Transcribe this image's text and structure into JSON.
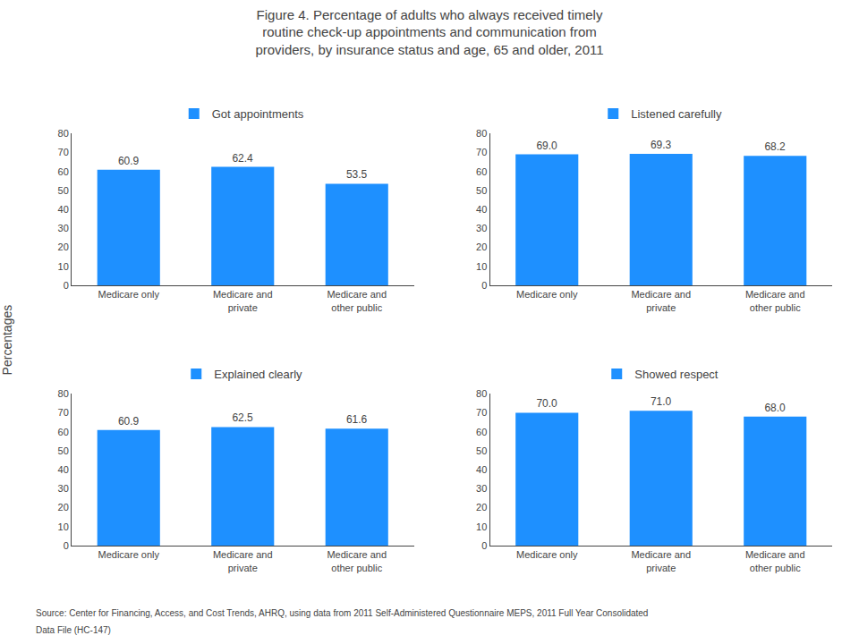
{
  "title": "Figure 4. Percentage of adults who always received timely\nroutine check-up appointments and communication from\nproviders, by insurance status and age, 65 and older, 2011",
  "ylabel": "Percentages",
  "annotations": [
    "Source: Center for Financing, Access, and Cost Trends, AHRQ, using data from 2011 Self-Administered Questionnaire MEPS, 2011 Full Year Consolidated",
    "Data File (HC-147)"
  ],
  "chart_data": [
    {
      "type": "bar",
      "title": "Got appointments",
      "categories": [
        "Medicare only",
        "Medicare and\nprivate",
        "Medicare and\nother public"
      ],
      "values": [
        60.9,
        62.4,
        53.5
      ],
      "value_labels": [
        "60.9",
        "62.4",
        "53.5"
      ],
      "color": "#1E90FF",
      "ylim": [
        0,
        80
      ],
      "yticks": [
        0,
        10,
        20,
        30,
        40,
        50,
        60,
        70,
        80
      ],
      "grid": false,
      "data_labels": true
    },
    {
      "type": "bar",
      "title": "Listened carefully",
      "categories": [
        "Medicare only",
        "Medicare and\nprivate",
        "Medicare and\nother public"
      ],
      "values": [
        69.0,
        69.3,
        68.2
      ],
      "value_labels": [
        "69.0",
        "69.3",
        "68.2"
      ],
      "color": "#1E90FF",
      "ylim": [
        0,
        80
      ],
      "yticks": [
        0,
        10,
        20,
        30,
        40,
        50,
        60,
        70,
        80
      ],
      "grid": false,
      "data_labels": true
    },
    {
      "type": "bar",
      "title": "Explained clearly",
      "categories": [
        "Medicare only",
        "Medicare and\nprivate",
        "Medicare and\nother public"
      ],
      "values": [
        60.9,
        62.5,
        61.6
      ],
      "value_labels": [
        "60.9",
        "62.5",
        "61.6"
      ],
      "color": "#1E90FF",
      "ylim": [
        0,
        80
      ],
      "yticks": [
        0,
        10,
        20,
        30,
        40,
        50,
        60,
        70,
        80
      ],
      "grid": false,
      "data_labels": true
    },
    {
      "type": "bar",
      "title": "Showed respect",
      "categories": [
        "Medicare only",
        "Medicare and\nprivate",
        "Medicare and\nother public"
      ],
      "values": [
        70.0,
        71.0,
        68.0
      ],
      "value_labels": [
        "70.0",
        "71.0",
        "68.0"
      ],
      "color": "#1E90FF",
      "ylim": [
        0,
        80
      ],
      "yticks": [
        0,
        10,
        20,
        30,
        40,
        50,
        60,
        70,
        80
      ],
      "grid": false,
      "data_labels": true
    }
  ]
}
